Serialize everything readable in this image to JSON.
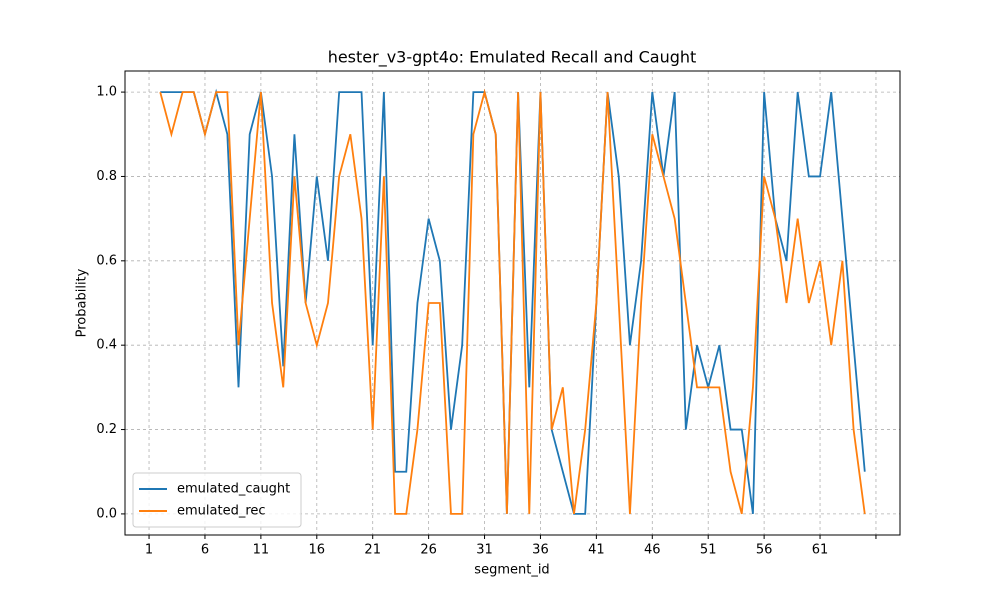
{
  "chart_data": {
    "type": "line",
    "title": "hester_v3-gpt4o: Emulated Recall and Caught",
    "x_label": "segment_id",
    "y_label": "Probability",
    "x": [
      2,
      3,
      4,
      5,
      6,
      7,
      8,
      9,
      10,
      11,
      12,
      13,
      14,
      15,
      16,
      17,
      18,
      19,
      20,
      21,
      22,
      23,
      24,
      25,
      26,
      27,
      28,
      29,
      30,
      31,
      32,
      33,
      34,
      35,
      36,
      37,
      38,
      39,
      40,
      41,
      42,
      43,
      44,
      45,
      46,
      47,
      48,
      49,
      50,
      51,
      52,
      53,
      54,
      55,
      56,
      57,
      58,
      59,
      60,
      61,
      62,
      63,
      64,
      65
    ],
    "series": [
      {
        "name": "emulated_caught",
        "color": "#1f77b4",
        "values": [
          1.0,
          1.0,
          1.0,
          1.0,
          0.9,
          1.0,
          0.9,
          0.3,
          0.9,
          1.0,
          0.8,
          0.35,
          0.9,
          0.5,
          0.8,
          0.6,
          1.0,
          1.0,
          1.0,
          0.4,
          1.0,
          0.1,
          0.1,
          0.5,
          0.7,
          0.6,
          0.2,
          0.4,
          1.0,
          1.0,
          0.9,
          0.0,
          1.0,
          0.3,
          1.0,
          0.2,
          0.1,
          0.0,
          0.0,
          0.5,
          1.0,
          0.8,
          0.4,
          0.6,
          1.0,
          0.8,
          1.0,
          0.2,
          0.4,
          0.3,
          0.4,
          0.2,
          0.2,
          0.0,
          1.0,
          0.7,
          0.6,
          1.0,
          0.8,
          0.8,
          1.0,
          0.7,
          0.4,
          0.1
        ]
      },
      {
        "name": "emulated_rec",
        "color": "#ff7f0e",
        "values": [
          1.0,
          0.9,
          1.0,
          1.0,
          0.9,
          1.0,
          1.0,
          0.4,
          0.7,
          1.0,
          0.5,
          0.3,
          0.8,
          0.5,
          0.4,
          0.5,
          0.8,
          0.9,
          0.7,
          0.2,
          0.8,
          0.0,
          0.0,
          0.2,
          0.5,
          0.5,
          0.0,
          0.0,
          0.9,
          1.0,
          0.9,
          0.0,
          1.0,
          0.0,
          1.0,
          0.2,
          0.3,
          0.0,
          0.2,
          0.5,
          1.0,
          0.5,
          0.0,
          0.5,
          0.9,
          0.8,
          0.7,
          0.5,
          0.3,
          0.3,
          0.3,
          0.1,
          0.0,
          0.3,
          0.8,
          0.7,
          0.5,
          0.7,
          0.5,
          0.6,
          0.4,
          0.6,
          0.2,
          0.0
        ]
      }
    ],
    "xlim": [
      -1.15,
      68.15
    ],
    "xticks": [
      1,
      6,
      11,
      16,
      21,
      26,
      31,
      36,
      41,
      46,
      51,
      56,
      61,
      {
        "value": 66,
        "label": null
      }
    ],
    "ylim": [
      -0.05,
      1.05
    ],
    "yticks": [
      {
        "value": 0,
        "label": "0.0"
      },
      {
        "value": 0.2,
        "label": "0.2"
      },
      {
        "value": 0.4,
        "label": "0.4"
      },
      {
        "value": 0.6,
        "label": "0.6"
      },
      {
        "value": 0.8,
        "label": "0.8"
      },
      {
        "value": 1.0,
        "label": "1.0"
      }
    ],
    "grid": true,
    "legend": "lower left"
  }
}
